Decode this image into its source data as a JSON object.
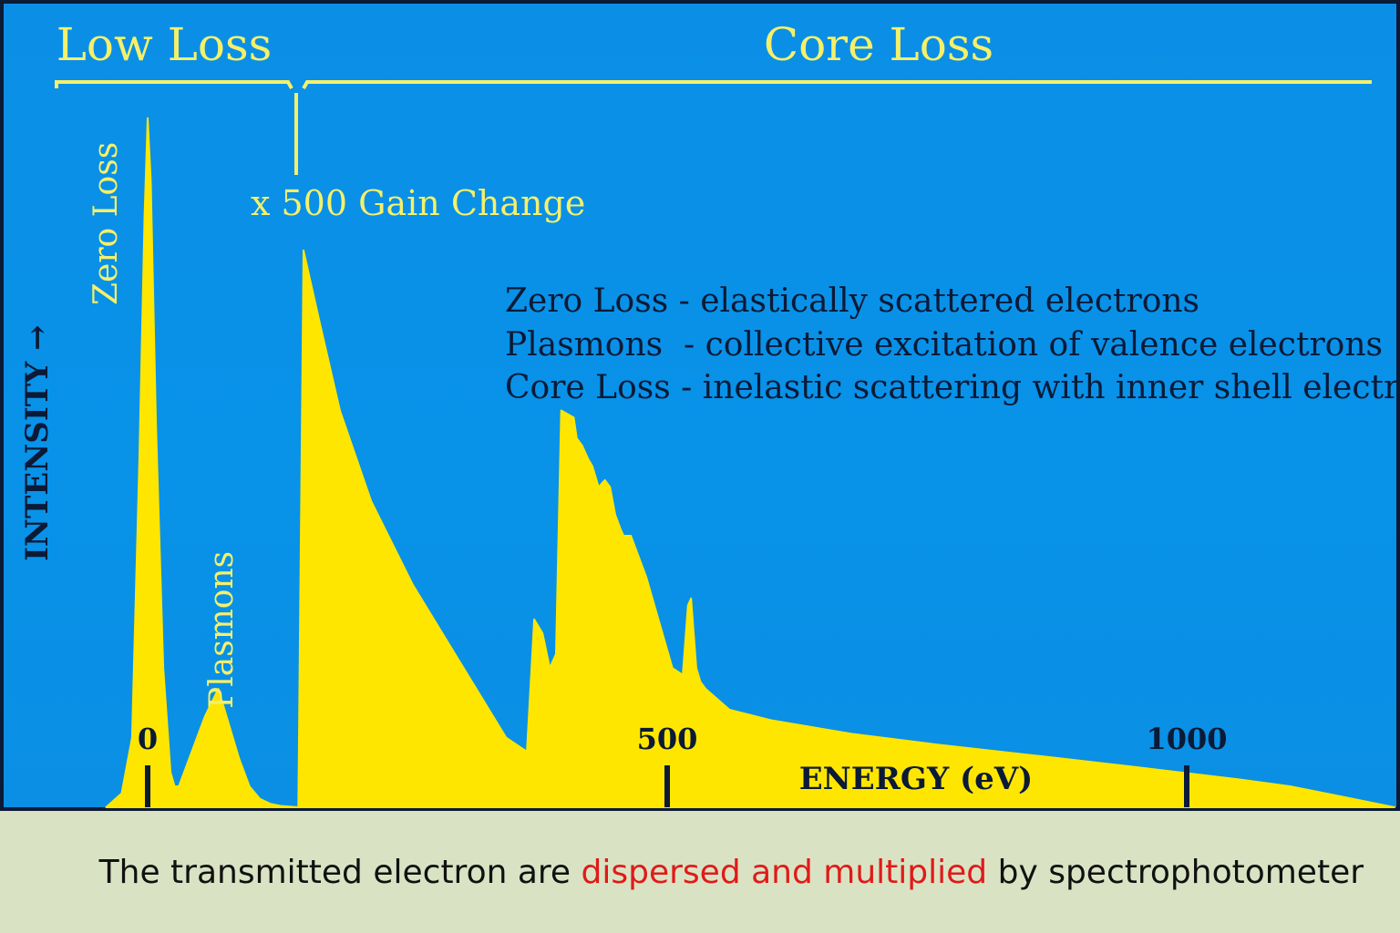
{
  "colors": {
    "background": "#0b8fe6",
    "spectrum_fill": "#ffe600",
    "label_yellow": "#f5f06a",
    "dark_text": "#0b1a36",
    "caption_bg": "#d9e3c3",
    "caption_highlight": "#e01a1a"
  },
  "region_labels": {
    "low_loss": "Low Loss",
    "core_loss": "Core Loss",
    "gain_change": "x 500 Gain Change"
  },
  "peak_labels": {
    "zero_loss": "Zero Loss",
    "plasmons": "Plasmons"
  },
  "legend_lines": [
    "Zero Loss - elastically scattered electrons",
    "Plasmons  - collective excitation of valence electrons",
    "Core Loss - inelastic scattering with inner shell electrons"
  ],
  "caption": {
    "before": "The transmitted electron are ",
    "highlight": "dispersed and multiplied",
    "after": " by spectrophotometer"
  },
  "chart_data": {
    "type": "area",
    "title": "",
    "xlabel": "ENERGY (eV)",
    "ylabel": "INTENSITY →",
    "x_ticks": [
      0,
      500,
      1000
    ],
    "x_tick_labels": [
      "0",
      "500",
      "1000"
    ],
    "xlim": [
      -40,
      1220
    ],
    "ylim": [
      0,
      1
    ],
    "y_axis_ticks": "none",
    "grid": false,
    "gain_change_x": 145,
    "segments": [
      {
        "name": "",
        "gain": "x1",
        "x": [
          -40,
          -25,
          -15,
          -8,
          -3,
          0,
          3,
          8,
          15,
          22,
          26,
          30,
          35,
          45,
          55,
          68,
          78,
          88,
          98,
          108,
          118,
          128,
          145
        ],
        "y": [
          0.0,
          0.02,
          0.1,
          0.5,
          0.85,
          0.99,
          0.9,
          0.55,
          0.2,
          0.05,
          0.03,
          0.03,
          0.05,
          0.09,
          0.13,
          0.17,
          0.12,
          0.07,
          0.03,
          0.012,
          0.005,
          0.002,
          0.0
        ]
      },
      {
        "name": "",
        "gain": "x500",
        "x": [
          145,
          150,
          165,
          185,
          215,
          255,
          300,
          345,
          365,
          372,
          380,
          387,
          393,
          398,
          410,
          413,
          418,
          424,
          428,
          434,
          440,
          445,
          450,
          455,
          458,
          465,
          480,
          505,
          515,
          520,
          523,
          528,
          532,
          537,
          560,
          600,
          680,
          760,
          850,
          950,
          1050,
          1100,
          1150,
          1200
        ],
        "y": [
          0.0,
          0.8,
          0.7,
          0.57,
          0.44,
          0.32,
          0.21,
          0.1,
          0.08,
          0.27,
          0.25,
          0.2,
          0.22,
          0.57,
          0.56,
          0.53,
          0.52,
          0.5,
          0.49,
          0.46,
          0.47,
          0.46,
          0.42,
          0.4,
          0.39,
          0.39,
          0.33,
          0.2,
          0.19,
          0.29,
          0.3,
          0.2,
          0.18,
          0.17,
          0.14,
          0.125,
          0.105,
          0.09,
          0.075,
          0.058,
          0.04,
          0.03,
          0.015,
          0.0
        ]
      }
    ]
  }
}
